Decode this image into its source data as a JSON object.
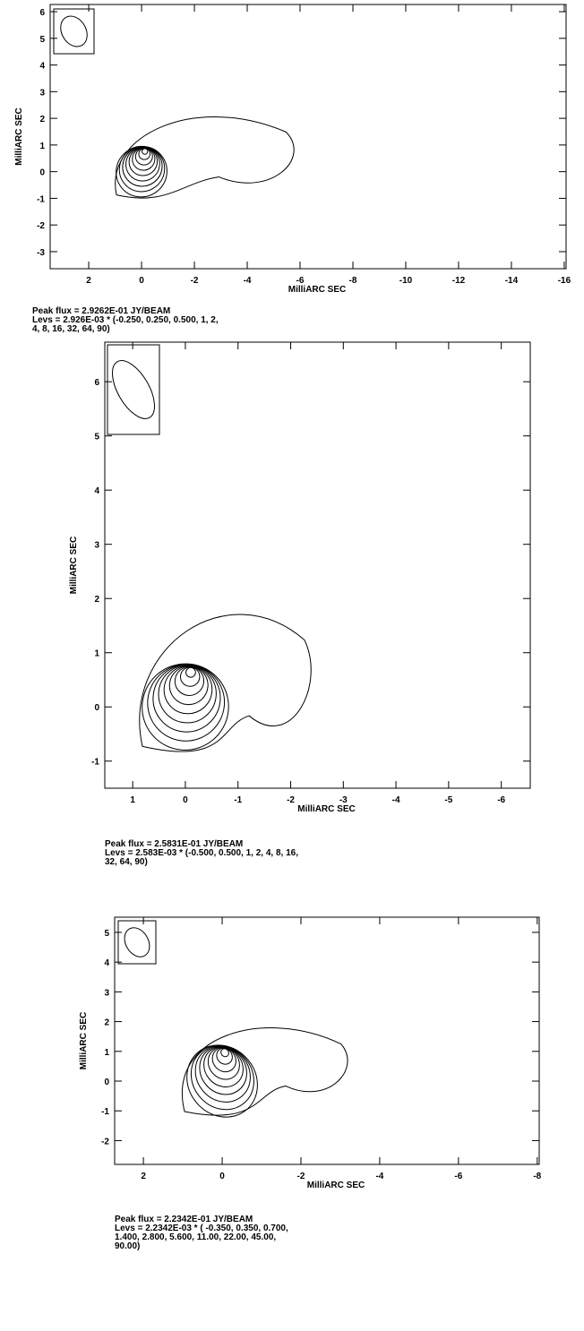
{
  "chart_data": [
    {
      "type": "contour",
      "xlabel": "MilliARC SEC",
      "ylabel": "MilliARC SEC",
      "xlim": [
        3.46,
        -16.07
      ],
      "ylim": [
        -3.64,
        6.27
      ],
      "xticks": [
        2,
        0,
        -2,
        -4,
        -6,
        -8,
        -10,
        -12,
        -14,
        -16
      ],
      "yticks": [
        -3,
        -2,
        -1,
        0,
        1,
        2,
        3,
        4,
        5,
        6
      ],
      "notes": [
        "Peak flux =  2.9262E-01 JY/BEAM",
        "Levs = 2.926E-03 * (-0.250, 0.250, 0.500, 1, 2,",
        "4, 8, 16, 32, 64, 90)"
      ]
    },
    {
      "type": "contour",
      "xlabel": "MilliARC SEC",
      "ylabel": "MilliARC SEC",
      "xlim": [
        1.53,
        -6.55
      ],
      "ylim": [
        -1.5,
        6.73
      ],
      "xticks": [
        1,
        0,
        -1,
        -2,
        -3,
        -4,
        -5,
        -6
      ],
      "yticks": [
        -1,
        0,
        1,
        2,
        3,
        4,
        5,
        6
      ],
      "notes": [
        "Peak flux =  2.5831E-01 JY/BEAM",
        "Levs = 2.583E-03 * (-0.500, 0.500, 1, 2, 4, 8, 16,",
        "32, 64, 90)"
      ]
    },
    {
      "type": "contour",
      "xlabel": "MilliARC SEC",
      "ylabel": "MilliARC SEC",
      "xlim": [
        2.73,
        -8.05
      ],
      "ylim": [
        -2.8,
        5.51
      ],
      "xticks": [
        2,
        0,
        -2,
        -4,
        -6,
        -8
      ],
      "yticks": [
        -2,
        -1,
        0,
        1,
        2,
        3,
        4,
        5
      ],
      "notes": [
        "Peak flux =  2.2342E-01 JY/BEAM",
        "Levs =  2.2342E-03 * ( -0.350, 0.350, 0.700,",
        " 1.400, 2.800, 5.600, 11.00, 22.00, 45.00,",
        " 90.00)"
      ]
    }
  ]
}
